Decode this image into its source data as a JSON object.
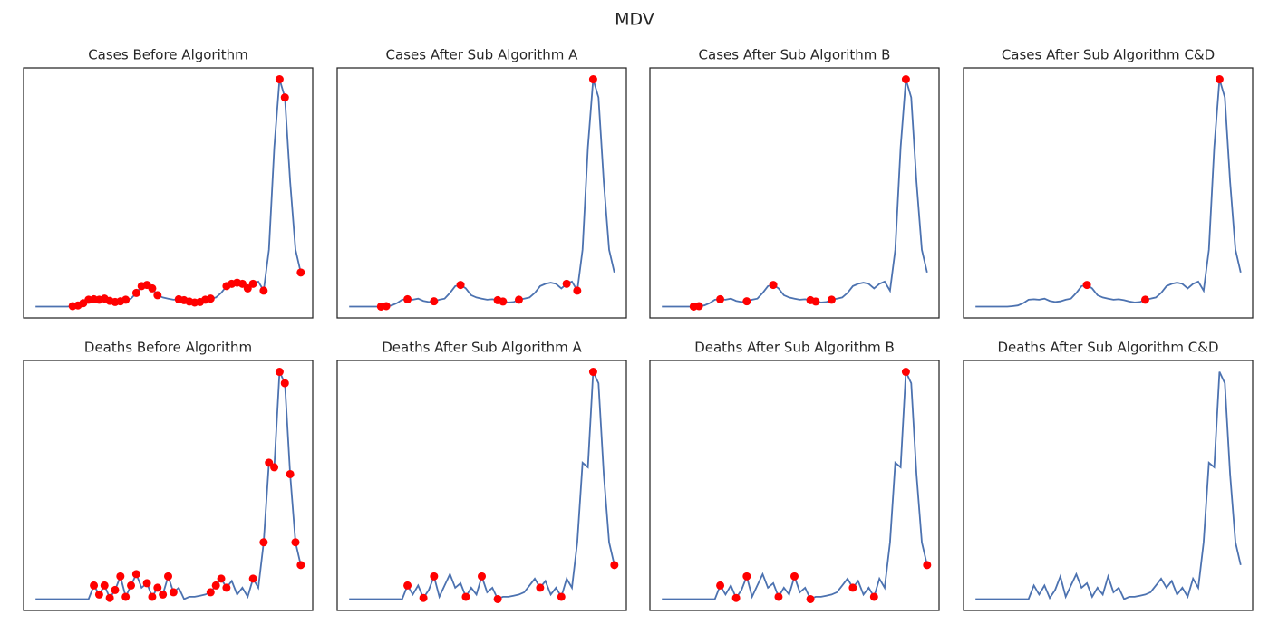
{
  "title": "MDV",
  "chart_data": [
    {
      "type": "line",
      "title": "Cases Before Algorithm",
      "color": "#4c72b0",
      "marker_color": "#ff0000",
      "xlim": [
        -4.5,
        104.5
      ],
      "ylim": [
        -5,
        105
      ],
      "x": [
        0,
        2,
        4,
        6,
        8,
        10,
        12,
        14,
        16,
        18,
        20,
        22,
        24,
        26,
        28,
        30,
        32,
        34,
        36,
        38,
        40,
        42,
        44,
        46,
        48,
        50,
        52,
        54,
        56,
        58,
        60,
        62,
        64,
        66,
        68,
        70,
        72,
        74,
        76,
        78,
        80,
        82,
        84,
        86,
        88,
        90,
        92,
        94,
        96,
        98,
        100
      ],
      "values": [
        0,
        0,
        0,
        0,
        0,
        0,
        0,
        0.2,
        0.5,
        1.5,
        3,
        3.2,
        3,
        3.5,
        2.5,
        2,
        2.3,
        3,
        3.5,
        6,
        9,
        9.5,
        8,
        5,
        4,
        3.5,
        3,
        3.2,
        2.8,
        2.2,
        1.8,
        2,
        3,
        3.5,
        4,
        6,
        9,
        10,
        10.5,
        10,
        8,
        10,
        11,
        7,
        25,
        70,
        100,
        92,
        55,
        25,
        15
      ],
      "markers": [
        7,
        8,
        9,
        10,
        11,
        12,
        13,
        14,
        15,
        16,
        17,
        19,
        20,
        21,
        22,
        23,
        27,
        28,
        29,
        30,
        31,
        32,
        33,
        36,
        37,
        38,
        39,
        40,
        41,
        43,
        46,
        47,
        50
      ]
    },
    {
      "type": "line",
      "title": "Cases After Sub Algorithm A",
      "color": "#4c72b0",
      "marker_color": "#ff0000",
      "xlim": [
        -4.5,
        104.5
      ],
      "ylim": [
        -5,
        105
      ],
      "x": [
        0,
        2,
        4,
        6,
        8,
        10,
        12,
        14,
        16,
        18,
        20,
        22,
        24,
        26,
        28,
        30,
        32,
        34,
        36,
        38,
        40,
        42,
        44,
        46,
        48,
        50,
        52,
        54,
        56,
        58,
        60,
        62,
        64,
        66,
        68,
        70,
        72,
        74,
        76,
        78,
        80,
        82,
        84,
        86,
        88,
        90,
        92,
        94,
        96,
        98,
        100
      ],
      "values": [
        0,
        0,
        0,
        0,
        0,
        0,
        0,
        0.2,
        0.5,
        1.5,
        3,
        3.2,
        3,
        3.5,
        2.5,
        2,
        2.3,
        3,
        3.5,
        6,
        9,
        9.5,
        8,
        5,
        4,
        3.5,
        3,
        3.2,
        2.8,
        2.2,
        1.8,
        2,
        3,
        3.5,
        4,
        6,
        9,
        10,
        10.5,
        10,
        8,
        10,
        11,
        7,
        25,
        70,
        100,
        92,
        55,
        25,
        15
      ],
      "markers": [
        6,
        7,
        11,
        16,
        21,
        28,
        29,
        32,
        41,
        43,
        46
      ]
    },
    {
      "type": "line",
      "title": "Cases After Sub Algorithm B",
      "color": "#4c72b0",
      "marker_color": "#ff0000",
      "xlim": [
        -4.5,
        104.5
      ],
      "ylim": [
        -5,
        105
      ],
      "x": [
        0,
        2,
        4,
        6,
        8,
        10,
        12,
        14,
        16,
        18,
        20,
        22,
        24,
        26,
        28,
        30,
        32,
        34,
        36,
        38,
        40,
        42,
        44,
        46,
        48,
        50,
        52,
        54,
        56,
        58,
        60,
        62,
        64,
        66,
        68,
        70,
        72,
        74,
        76,
        78,
        80,
        82,
        84,
        86,
        88,
        90,
        92,
        94,
        96,
        98,
        100
      ],
      "values": [
        0,
        0,
        0,
        0,
        0,
        0,
        0,
        0.2,
        0.5,
        1.5,
        3,
        3.2,
        3,
        3.5,
        2.5,
        2,
        2.3,
        3,
        3.5,
        6,
        9,
        9.5,
        8,
        5,
        4,
        3.5,
        3,
        3.2,
        2.8,
        2.2,
        1.8,
        2,
        3,
        3.5,
        4,
        6,
        9,
        10,
        10.5,
        10,
        8,
        10,
        11,
        7,
        25,
        70,
        100,
        92,
        55,
        25,
        15
      ],
      "markers": [
        6,
        7,
        11,
        16,
        21,
        28,
        29,
        32,
        46
      ]
    },
    {
      "type": "line",
      "title": "Cases After Sub Algorithm C&D",
      "color": "#4c72b0",
      "marker_color": "#ff0000",
      "xlim": [
        -4.5,
        104.5
      ],
      "ylim": [
        -5,
        105
      ],
      "x": [
        0,
        2,
        4,
        6,
        8,
        10,
        12,
        14,
        16,
        18,
        20,
        22,
        24,
        26,
        28,
        30,
        32,
        34,
        36,
        38,
        40,
        42,
        44,
        46,
        48,
        50,
        52,
        54,
        56,
        58,
        60,
        62,
        64,
        66,
        68,
        70,
        72,
        74,
        76,
        78,
        80,
        82,
        84,
        86,
        88,
        90,
        92,
        94,
        96,
        98,
        100
      ],
      "values": [
        0,
        0,
        0,
        0,
        0,
        0,
        0,
        0.2,
        0.5,
        1.5,
        3,
        3.2,
        3,
        3.5,
        2.5,
        2,
        2.3,
        3,
        3.5,
        6,
        9,
        9.5,
        8,
        5,
        4,
        3.5,
        3,
        3.2,
        2.8,
        2.2,
        1.8,
        2,
        3,
        3.5,
        4,
        6,
        9,
        10,
        10.5,
        10,
        8,
        10,
        11,
        7,
        25,
        70,
        100,
        92,
        55,
        25,
        15
      ],
      "markers": [
        21,
        32,
        46
      ]
    },
    {
      "type": "line",
      "title": "Deaths Before Algorithm",
      "color": "#4c72b0",
      "marker_color": "#ff0000",
      "xlim": [
        -4.5,
        104.5
      ],
      "ylim": [
        -5,
        105
      ],
      "x": [
        0,
        2,
        4,
        6,
        8,
        10,
        12,
        14,
        16,
        18,
        20,
        22,
        24,
        26,
        28,
        30,
        32,
        34,
        36,
        38,
        40,
        42,
        44,
        46,
        48,
        50,
        52,
        54,
        56,
        58,
        60,
        62,
        64,
        66,
        68,
        70,
        72,
        74,
        76,
        78,
        80,
        82,
        84,
        86,
        88,
        90,
        92,
        94,
        96,
        98,
        100
      ],
      "values": [
        0,
        0,
        0,
        0,
        0,
        0,
        0,
        0,
        0,
        0,
        0,
        6,
        2,
        6,
        0.5,
        4,
        10,
        1,
        6,
        11,
        5,
        7,
        1,
        5,
        2,
        10,
        3,
        5,
        0,
        1,
        1,
        1.5,
        2,
        3,
        6,
        9,
        5,
        8,
        2,
        5,
        1,
        9,
        5,
        25,
        60,
        58,
        100,
        95,
        55,
        25,
        15
      ],
      "markers": [
        11,
        12,
        13,
        14,
        15,
        16,
        17,
        18,
        19,
        21,
        22,
        23,
        24,
        25,
        26,
        33,
        34,
        35,
        36,
        41,
        43,
        44,
        45,
        46,
        47,
        48,
        49,
        50
      ]
    },
    {
      "type": "line",
      "title": "Deaths After Sub Algorithm A",
      "color": "#4c72b0",
      "marker_color": "#ff0000",
      "xlim": [
        -4.5,
        104.5
      ],
      "ylim": [
        -5,
        105
      ],
      "x": [
        0,
        2,
        4,
        6,
        8,
        10,
        12,
        14,
        16,
        18,
        20,
        22,
        24,
        26,
        28,
        30,
        32,
        34,
        36,
        38,
        40,
        42,
        44,
        46,
        48,
        50,
        52,
        54,
        56,
        58,
        60,
        62,
        64,
        66,
        68,
        70,
        72,
        74,
        76,
        78,
        80,
        82,
        84,
        86,
        88,
        90,
        92,
        94,
        96,
        98,
        100
      ],
      "values": [
        0,
        0,
        0,
        0,
        0,
        0,
        0,
        0,
        0,
        0,
        0,
        6,
        2,
        6,
        0.5,
        4,
        10,
        1,
        6,
        11,
        5,
        7,
        1,
        5,
        2,
        10,
        3,
        5,
        0,
        1,
        1,
        1.5,
        2,
        3,
        6,
        9,
        5,
        8,
        2,
        5,
        1,
        9,
        5,
        25,
        60,
        58,
        100,
        95,
        55,
        25,
        15
      ],
      "markers": [
        11,
        14,
        16,
        22,
        25,
        28,
        36,
        40,
        46,
        50
      ]
    },
    {
      "type": "line",
      "title": "Deaths After Sub Algorithm B",
      "color": "#4c72b0",
      "marker_color": "#ff0000",
      "xlim": [
        -4.5,
        104.5
      ],
      "ylim": [
        -5,
        105
      ],
      "x": [
        0,
        2,
        4,
        6,
        8,
        10,
        12,
        14,
        16,
        18,
        20,
        22,
        24,
        26,
        28,
        30,
        32,
        34,
        36,
        38,
        40,
        42,
        44,
        46,
        48,
        50,
        52,
        54,
        56,
        58,
        60,
        62,
        64,
        66,
        68,
        70,
        72,
        74,
        76,
        78,
        80,
        82,
        84,
        86,
        88,
        90,
        92,
        94,
        96,
        98,
        100
      ],
      "values": [
        0,
        0,
        0,
        0,
        0,
        0,
        0,
        0,
        0,
        0,
        0,
        6,
        2,
        6,
        0.5,
        4,
        10,
        1,
        6,
        11,
        5,
        7,
        1,
        5,
        2,
        10,
        3,
        5,
        0,
        1,
        1,
        1.5,
        2,
        3,
        6,
        9,
        5,
        8,
        2,
        5,
        1,
        9,
        5,
        25,
        60,
        58,
        100,
        95,
        55,
        25,
        15
      ],
      "markers": [
        11,
        14,
        16,
        22,
        25,
        28,
        36,
        40,
        46,
        50
      ]
    },
    {
      "type": "line",
      "title": "Deaths After Sub Algorithm C&D",
      "color": "#4c72b0",
      "marker_color": "#ff0000",
      "xlim": [
        -4.5,
        104.5
      ],
      "ylim": [
        -5,
        105
      ],
      "x": [
        0,
        2,
        4,
        6,
        8,
        10,
        12,
        14,
        16,
        18,
        20,
        22,
        24,
        26,
        28,
        30,
        32,
        34,
        36,
        38,
        40,
        42,
        44,
        46,
        48,
        50,
        52,
        54,
        56,
        58,
        60,
        62,
        64,
        66,
        68,
        70,
        72,
        74,
        76,
        78,
        80,
        82,
        84,
        86,
        88,
        90,
        92,
        94,
        96,
        98,
        100
      ],
      "values": [
        0,
        0,
        0,
        0,
        0,
        0,
        0,
        0,
        0,
        0,
        0,
        6,
        2,
        6,
        0.5,
        4,
        10,
        1,
        6,
        11,
        5,
        7,
        1,
        5,
        2,
        10,
        3,
        5,
        0,
        1,
        1,
        1.5,
        2,
        3,
        6,
        9,
        5,
        8,
        2,
        5,
        1,
        9,
        5,
        25,
        60,
        58,
        100,
        95,
        55,
        25,
        15
      ],
      "markers": []
    }
  ]
}
